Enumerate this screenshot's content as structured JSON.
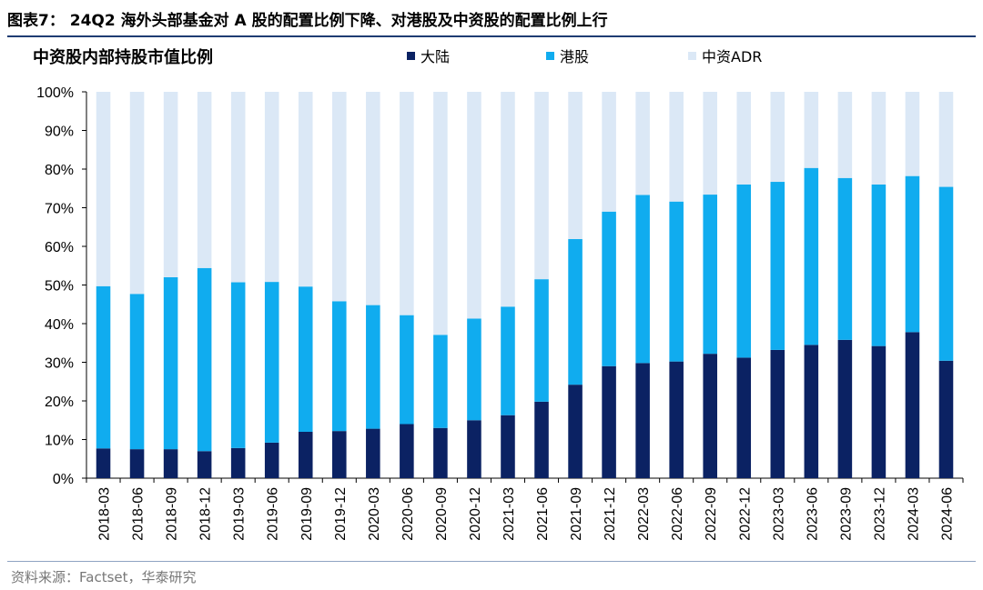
{
  "figure": {
    "title": "图表7： 24Q2 海外头部基金对 A 股的配置比例下降、对港股及中资股的配置比例上行",
    "source": "资料来源：Factset，华泰研究"
  },
  "chart_data": {
    "type": "bar",
    "stacked": true,
    "title": "中资股内部持股市值比例",
    "xlabel": "",
    "ylabel": "",
    "ylim": [
      0,
      100
    ],
    "y_unit": "%",
    "y_ticks": [
      "0%",
      "10%",
      "20%",
      "30%",
      "40%",
      "50%",
      "60%",
      "70%",
      "80%",
      "90%",
      "100%"
    ],
    "legend_position": "top",
    "categories": [
      "2018-03",
      "2018-06",
      "2018-09",
      "2018-12",
      "2019-03",
      "2019-06",
      "2019-09",
      "2019-12",
      "2020-03",
      "2020-06",
      "2020-09",
      "2020-12",
      "2021-03",
      "2021-06",
      "2021-09",
      "2021-12",
      "2022-03",
      "2022-06",
      "2022-09",
      "2022-12",
      "2023-03",
      "2023-06",
      "2023-09",
      "2023-12",
      "2024-03",
      "2024-06"
    ],
    "series": [
      {
        "name": "大陆",
        "color": "#0b2263",
        "values": [
          7.7,
          7.5,
          7.5,
          7.0,
          7.8,
          9.2,
          12.0,
          12.2,
          12.8,
          14.0,
          13.0,
          15.0,
          16.3,
          19.8,
          24.2,
          29.0,
          29.8,
          30.2,
          32.2,
          31.2,
          33.2,
          34.5,
          35.8,
          34.2,
          37.8,
          30.4
        ]
      },
      {
        "name": "港股",
        "color": "#10acef",
        "values": [
          42.0,
          40.2,
          44.5,
          47.4,
          42.9,
          41.6,
          37.6,
          33.6,
          32.0,
          28.2,
          24.1,
          26.3,
          28.1,
          31.7,
          37.7,
          40.0,
          43.5,
          41.4,
          41.2,
          44.8,
          43.5,
          45.8,
          41.9,
          41.8,
          40.4,
          45.0
        ]
      },
      {
        "name": "中资ADR",
        "color": "#dbe8f6",
        "values": [
          50.3,
          52.3,
          48.0,
          45.6,
          49.3,
          49.2,
          50.4,
          54.2,
          55.2,
          57.8,
          62.9,
          58.7,
          55.6,
          48.5,
          38.1,
          31.0,
          26.7,
          28.4,
          26.6,
          24.0,
          23.3,
          19.7,
          22.3,
          24.0,
          21.8,
          24.6
        ]
      }
    ]
  }
}
